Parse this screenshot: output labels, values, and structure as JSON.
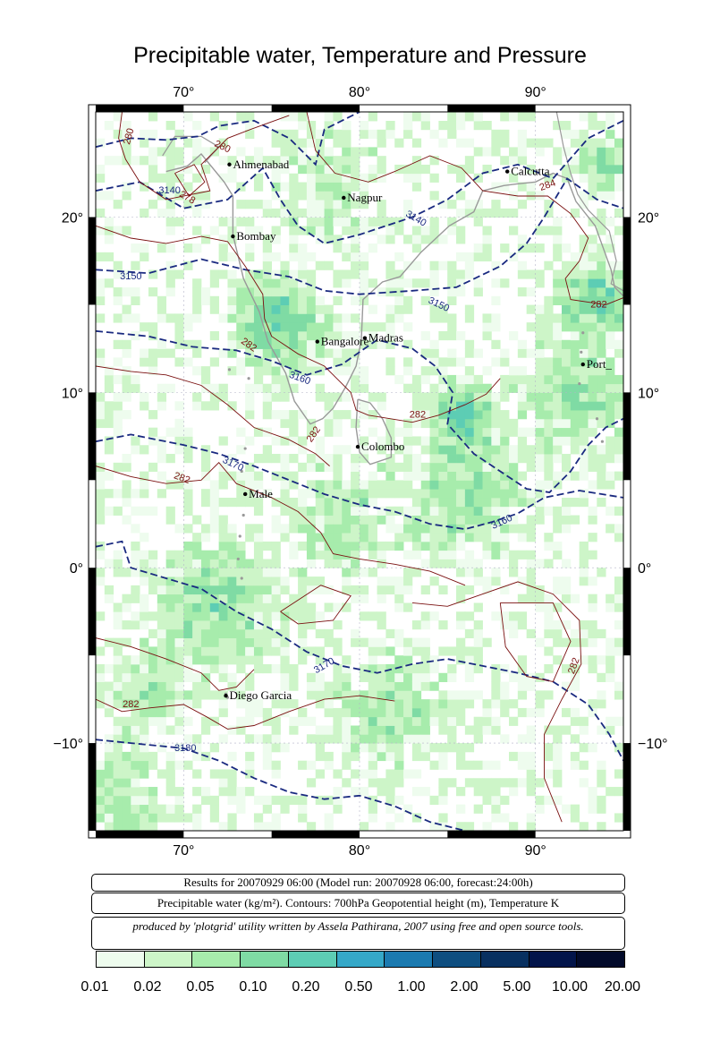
{
  "title": "Precipitable water, Temperature and Pressure",
  "map": {
    "lon_range": [
      65,
      95
    ],
    "lat_range": [
      -15,
      26
    ],
    "lon_ticks": [
      {
        "value": 70,
        "label": "70°"
      },
      {
        "value": 80,
        "label": "80°"
      },
      {
        "value": 90,
        "label": "90°"
      }
    ],
    "lat_ticks": [
      {
        "value": 20,
        "label": "20°"
      },
      {
        "value": 10,
        "label": "10°"
      },
      {
        "value": 0,
        "label": "0°"
      },
      {
        "value": -10,
        "label": "−10°"
      }
    ],
    "cities": [
      {
        "name": "Ahmenabad",
        "lon": 72.6,
        "lat": 23.0
      },
      {
        "name": "Nagpur",
        "lon": 79.1,
        "lat": 21.1
      },
      {
        "name": "Calcutta",
        "lon": 88.4,
        "lat": 22.6
      },
      {
        "name": "Bombay",
        "lon": 72.8,
        "lat": 18.9
      },
      {
        "name": "Bangalore",
        "lon": 77.6,
        "lat": 12.9
      },
      {
        "name": "Madras",
        "lon": 80.3,
        "lat": 13.1
      },
      {
        "name": "Port_",
        "lon": 92.7,
        "lat": 11.6
      },
      {
        "name": "Colombo",
        "lon": 79.9,
        "lat": 6.9
      },
      {
        "name": "Male",
        "lon": 73.5,
        "lat": 4.2
      },
      {
        "name": "Diego Garcia",
        "lon": 72.4,
        "lat": -7.3
      }
    ],
    "contour_labels": [
      {
        "text": "280",
        "lon": 66.9,
        "lat": 24.6,
        "kind": "temp",
        "angle": -75
      },
      {
        "text": "280",
        "lon": 72.2,
        "lat": 24.0,
        "kind": "temp",
        "angle": 25
      },
      {
        "text": "278",
        "lon": 70.2,
        "lat": 21.1,
        "kind": "temp",
        "angle": 30
      },
      {
        "text": "284",
        "lon": 90.7,
        "lat": 21.8,
        "kind": "temp",
        "angle": -20
      },
      {
        "text": "282",
        "lon": 93.6,
        "lat": 15.0,
        "kind": "temp",
        "angle": 0
      },
      {
        "text": "282",
        "lon": 73.7,
        "lat": 12.7,
        "kind": "temp",
        "angle": 35
      },
      {
        "text": "282",
        "lon": 83.3,
        "lat": 8.7,
        "kind": "temp",
        "angle": 0
      },
      {
        "text": "282",
        "lon": 77.4,
        "lat": 7.6,
        "kind": "temp",
        "angle": -55
      },
      {
        "text": "282",
        "lon": 69.9,
        "lat": 5.1,
        "kind": "temp",
        "angle": 20
      },
      {
        "text": "282",
        "lon": 67.0,
        "lat": -7.8,
        "kind": "temp",
        "angle": 0
      },
      {
        "text": "282",
        "lon": 92.2,
        "lat": -5.6,
        "kind": "temp",
        "angle": -70
      },
      {
        "text": "3140",
        "lon": 69.2,
        "lat": 21.5,
        "kind": "height",
        "angle": 0
      },
      {
        "text": "3140",
        "lon": 83.2,
        "lat": 19.9,
        "kind": "height",
        "angle": 30
      },
      {
        "text": "3150",
        "lon": 67.0,
        "lat": 16.6,
        "kind": "height",
        "angle": 0
      },
      {
        "text": "3150",
        "lon": 84.5,
        "lat": 15.0,
        "kind": "height",
        "angle": 25
      },
      {
        "text": "3160",
        "lon": 76.6,
        "lat": 10.8,
        "kind": "height",
        "angle": 20
      },
      {
        "text": "3160",
        "lon": 88.1,
        "lat": 2.6,
        "kind": "height",
        "angle": -25
      },
      {
        "text": "3170",
        "lon": 72.8,
        "lat": 5.9,
        "kind": "height",
        "angle": 25
      },
      {
        "text": "3170",
        "lon": 78.0,
        "lat": -5.6,
        "kind": "height",
        "angle": -30
      },
      {
        "text": "3180",
        "lon": 70.1,
        "lat": -10.3,
        "kind": "height",
        "angle": 0
      }
    ]
  },
  "info": {
    "results": "Results for 20070929 06:00 (Model run: 20070928 06:00, forecast:24:00h)",
    "legend_line": "Precipitable water (kg/m²).  Contours: 700hPa Geopotential height (m), Temperature K",
    "credits": "produced by 'plotgrid' utility written by Assela Pathirana, 2007 using free and open source tools."
  },
  "colorbar": {
    "colors": [
      "#eefcee",
      "#cdf5c8",
      "#a7ecac",
      "#7fdba4",
      "#5dcdb4",
      "#35a8c8",
      "#1b7ab0",
      "#0e4e80",
      "#083060",
      "#02144a",
      "#020a2a"
    ],
    "labels": [
      "0.01",
      "0.02",
      "0.05",
      "0.10",
      "0.20",
      "0.50",
      "1.00",
      "2.00",
      "5.00",
      "10.00",
      "20.00"
    ]
  },
  "colors": {
    "coast": "#999999",
    "temp_contour": "#7a1010",
    "height_contour": "#1a2a80",
    "grid": "#b4b4c8"
  }
}
